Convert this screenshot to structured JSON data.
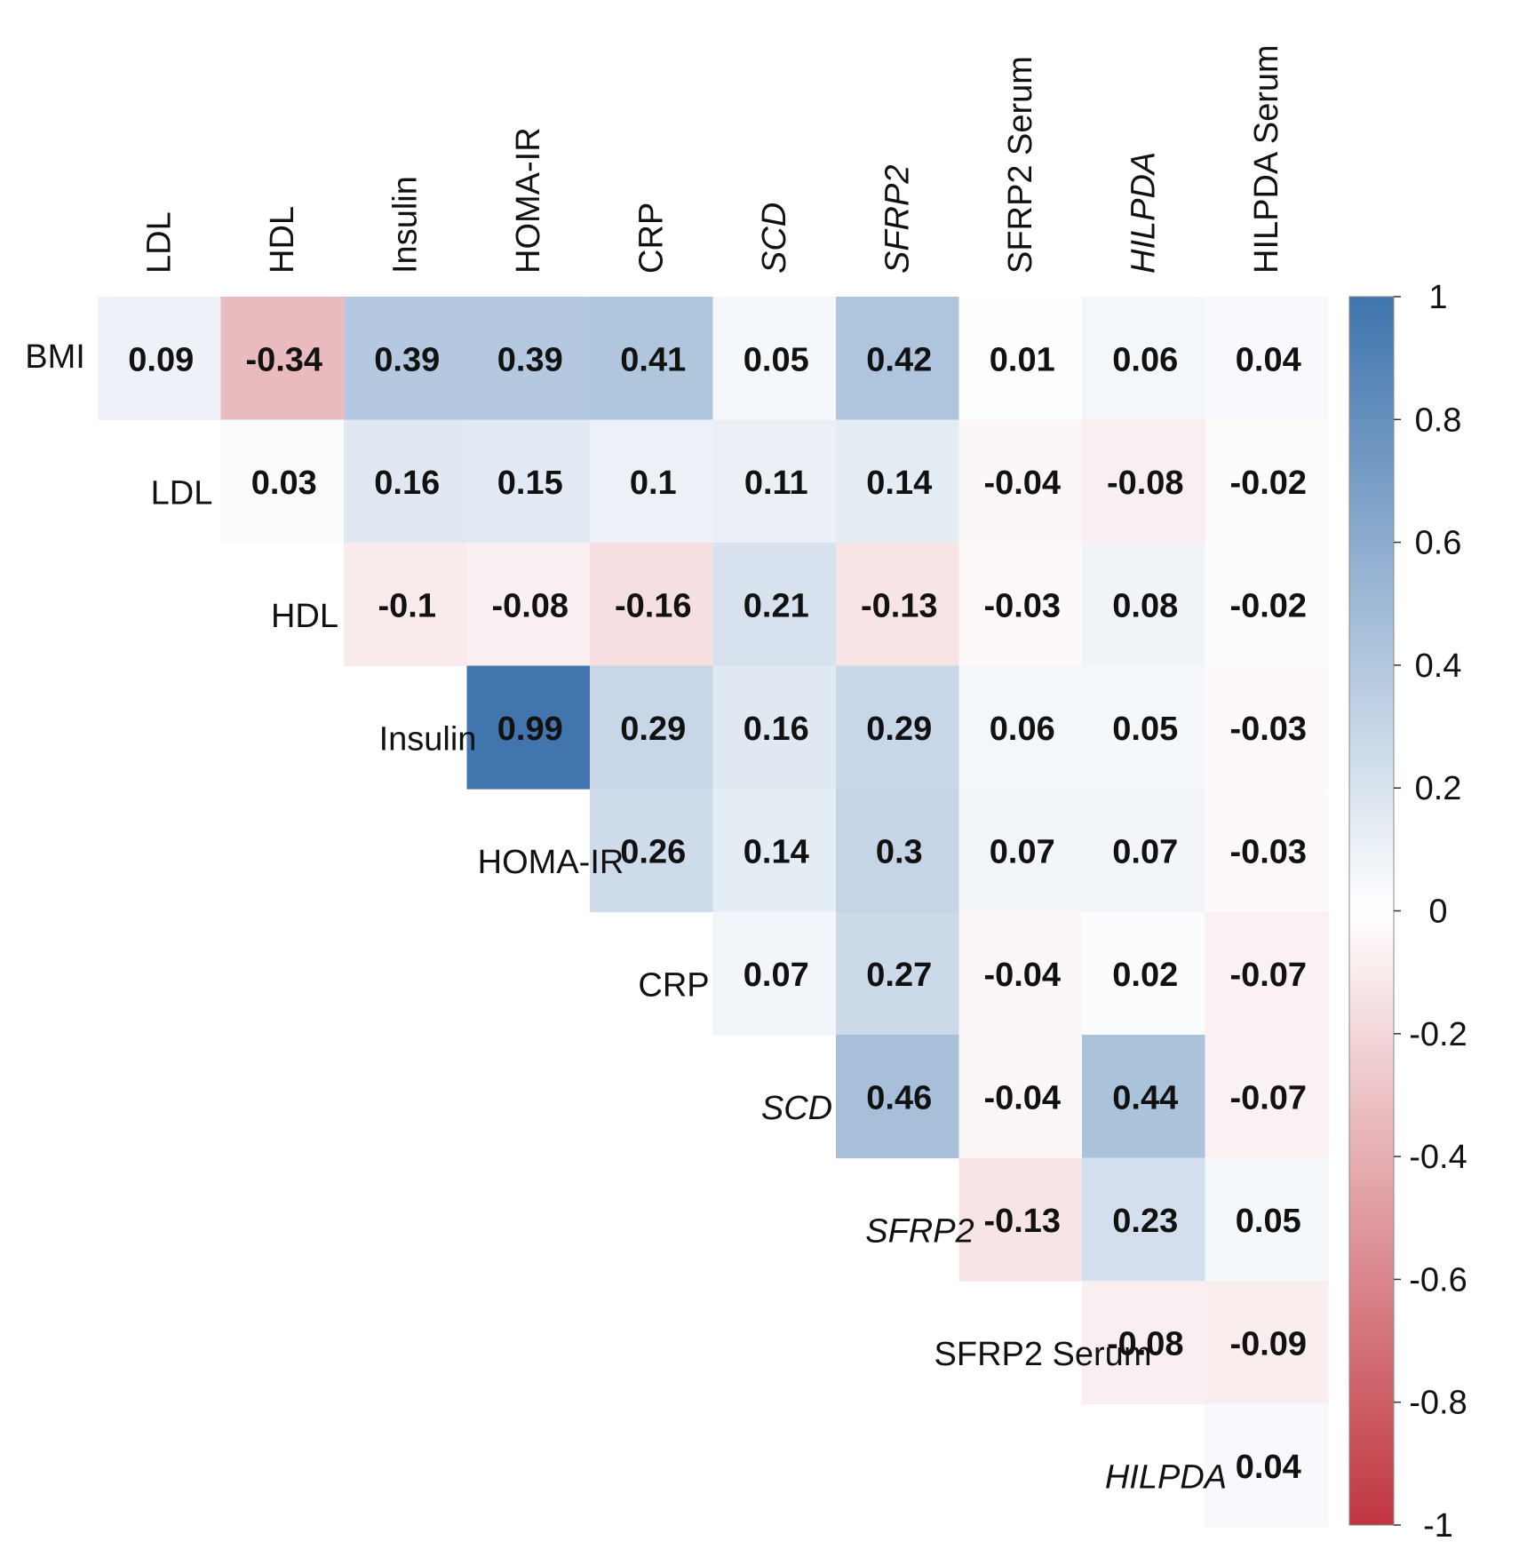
{
  "chart_data": {
    "type": "heatmap",
    "title": "",
    "columns": [
      {
        "label": "LDL",
        "italic": false
      },
      {
        "label": "HDL",
        "italic": false
      },
      {
        "label": "Insulin",
        "italic": false
      },
      {
        "label": "HOMA-IR",
        "italic": false
      },
      {
        "label": "CRP",
        "italic": false
      },
      {
        "label": "SCD",
        "italic": true
      },
      {
        "label": "SFRP2",
        "italic": true
      },
      {
        "label": "SFRP2 Serum",
        "italic": false
      },
      {
        "label": "HILPDA",
        "italic": true
      },
      {
        "label": "HILPDA Serum",
        "italic": false
      }
    ],
    "rows": [
      {
        "label": "BMI",
        "italic": false,
        "values": [
          "0.09",
          "-0.34",
          "0.39",
          "0.39",
          "0.41",
          "0.05",
          "0.42",
          "0.01",
          "0.06",
          "0.04"
        ]
      },
      {
        "label": "LDL",
        "italic": false,
        "values": [
          "0.03",
          "0.16",
          "0.15",
          "0.1",
          "0.11",
          "0.14",
          "-0.04",
          "-0.08",
          "-0.02"
        ]
      },
      {
        "label": "HDL",
        "italic": false,
        "values": [
          "-0.1",
          "-0.08",
          "-0.16",
          "0.21",
          "-0.13",
          "-0.03",
          "0.08",
          "-0.02"
        ]
      },
      {
        "label": "Insulin",
        "italic": false,
        "values": [
          "0.99",
          "0.29",
          "0.16",
          "0.29",
          "0.06",
          "0.05",
          "-0.03"
        ]
      },
      {
        "label": "HOMA-IR",
        "italic": false,
        "values": [
          "0.26",
          "0.14",
          "0.3",
          "0.07",
          "0.07",
          "-0.03"
        ]
      },
      {
        "label": "CRP",
        "italic": false,
        "values": [
          "0.07",
          "0.27",
          "-0.04",
          "0.02",
          "-0.07"
        ]
      },
      {
        "label": "SCD",
        "italic": true,
        "values": [
          "0.46",
          "-0.04",
          "0.44",
          "-0.07"
        ]
      },
      {
        "label": "SFRP2",
        "italic": true,
        "values": [
          "-0.13",
          "0.23",
          "0.05"
        ]
      },
      {
        "label": "SFRP2 Serum",
        "italic": false,
        "values": [
          "-0.08",
          "-0.09"
        ]
      },
      {
        "label": "HILPDA",
        "italic": true,
        "values": [
          "0.04"
        ]
      }
    ],
    "colorbar": {
      "range": [
        -1,
        1
      ],
      "ticks": [
        "1",
        "0.8",
        "0.6",
        "0.4",
        "0.2",
        "0",
        "-0.2",
        "-0.4",
        "-0.6",
        "-0.8",
        "-1"
      ],
      "color_low": "#c0363f",
      "color_mid": "#ffffff",
      "color_high": "#3f74ad"
    }
  }
}
